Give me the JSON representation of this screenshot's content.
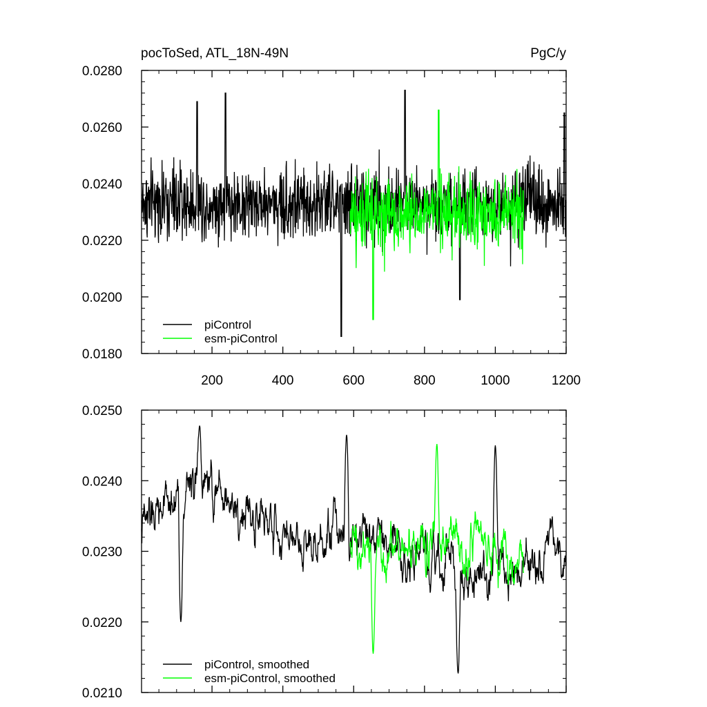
{
  "chart_data": [
    {
      "type": "line",
      "title": "pocToSed, ATL_18N-49N",
      "units": "PgC/y",
      "xlim": [
        1,
        1200
      ],
      "ylim": [
        0.018,
        0.028
      ],
      "x_ticks": [
        200,
        400,
        600,
        800,
        1000,
        1200
      ],
      "x_tick_labels": [
        "200",
        "400",
        "600",
        "800",
        "1000",
        "1200"
      ],
      "y_ticks": [
        0.018,
        0.02,
        0.022,
        0.024,
        0.026,
        0.028
      ],
      "y_tick_labels": [
        "0.0180",
        "0.0200",
        "0.0220",
        "0.0240",
        "0.0260",
        "0.0280"
      ],
      "legend_position": "bottom-left",
      "series": [
        {
          "name": "piControl",
          "color": "#000000",
          "x_range": [
            1,
            1200
          ],
          "mean": 0.0233,
          "sd": 0.0011,
          "approx_extremes": [
            [
              158,
              0.0269
            ],
            [
              238,
              0.0272
            ],
            [
              565,
              0.0186
            ],
            [
              745,
              0.0273
            ],
            [
              900,
              0.0199
            ],
            [
              1195,
              0.0265
            ]
          ]
        },
        {
          "name": "esm-piControl",
          "color": "#00ff00",
          "x_range": [
            590,
            1080
          ],
          "mean": 0.0229,
          "sd": 0.0011,
          "approx_extremes": [
            [
              655,
              0.0192
            ],
            [
              840,
              0.0266
            ]
          ]
        }
      ]
    },
    {
      "type": "line",
      "xlim": [
        1,
        1200
      ],
      "ylim": [
        0.021,
        0.025
      ],
      "x_ticks": [
        200,
        400,
        600,
        800,
        1000,
        1200
      ],
      "y_ticks": [
        0.021,
        0.022,
        0.023,
        0.024,
        0.025
      ],
      "y_tick_labels": [
        "0.0210",
        "0.0220",
        "0.0230",
        "0.0240",
        "0.0250"
      ],
      "legend_position": "bottom-left",
      "series": [
        {
          "name": "piControl, smoothed",
          "color": "#000000",
          "x_range": [
            1,
            1200
          ],
          "trend": [
            [
              1,
              0.0233
            ],
            [
              150,
              0.024
            ],
            [
              300,
              0.0235
            ],
            [
              450,
              0.0232
            ],
            [
              580,
              0.0234
            ],
            [
              700,
              0.0231
            ],
            [
              900,
              0.0226
            ],
            [
              1100,
              0.0227
            ],
            [
              1200,
              0.0231
            ]
          ],
          "approx_extremes": [
            [
              165,
              0.02478
            ],
            [
              112,
              0.022
            ],
            [
              580,
              0.02465
            ],
            [
              895,
              0.02127
            ],
            [
              1000,
              0.0245
            ]
          ]
        },
        {
          "name": "esm-piControl, smoothed",
          "color": "#00ff00",
          "x_range": [
            590,
            1080
          ],
          "trend": [
            [
              590,
              0.0232
            ],
            [
              700,
              0.023
            ],
            [
              840,
              0.0232
            ],
            [
              1080,
              0.0228
            ]
          ],
          "approx_extremes": [
            [
              655,
              0.02155
            ],
            [
              835,
              0.02452
            ]
          ]
        }
      ]
    }
  ]
}
